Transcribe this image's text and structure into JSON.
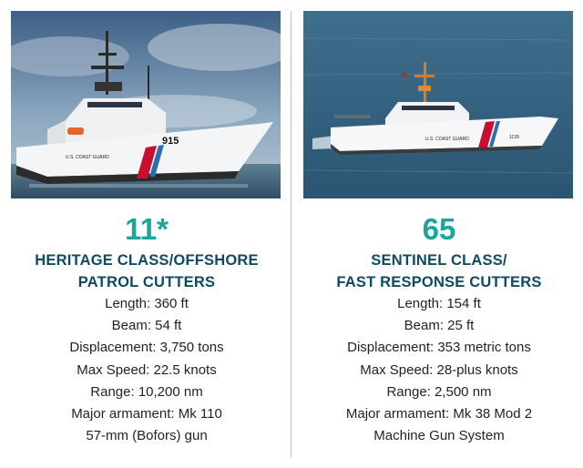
{
  "colors": {
    "accent_teal": "#18a79a",
    "title_navy": "#0f4a63",
    "text": "#231f20",
    "divider": "#bdbdbd"
  },
  "left": {
    "photo_caption_icon": "offshore-patrol-cutter-photo",
    "hull_number": "915",
    "hull_text": "U.S. COAST GUARD",
    "count": "11*",
    "title_line1": "HERITAGE CLASS/OFFSHORE",
    "title_line2": "PATROL CUTTERS",
    "specs": [
      "Length: 360 ft",
      "Beam: 54 ft",
      "Displacement: 3,750 tons",
      "Max Speed: 22.5 knots",
      "Range: 10,200 nm",
      "Major armament: Mk 110",
      "57-mm (Bofors) gun"
    ]
  },
  "right": {
    "photo_caption_icon": "fast-response-cutter-photo",
    "hull_number": "1139",
    "hull_text": "U.S. COAST GUARD",
    "count": "65",
    "title_line1": "SENTINEL CLASS/",
    "title_line2": "FAST RESPONSE CUTTERS",
    "specs": [
      "Length: 154 ft",
      "Beam: 25 ft",
      "Displacement: 353 metric tons",
      "Max Speed: 28-plus knots",
      "Range: 2,500 nm",
      "Major armament: Mk 38 Mod 2",
      "Machine Gun System"
    ]
  }
}
